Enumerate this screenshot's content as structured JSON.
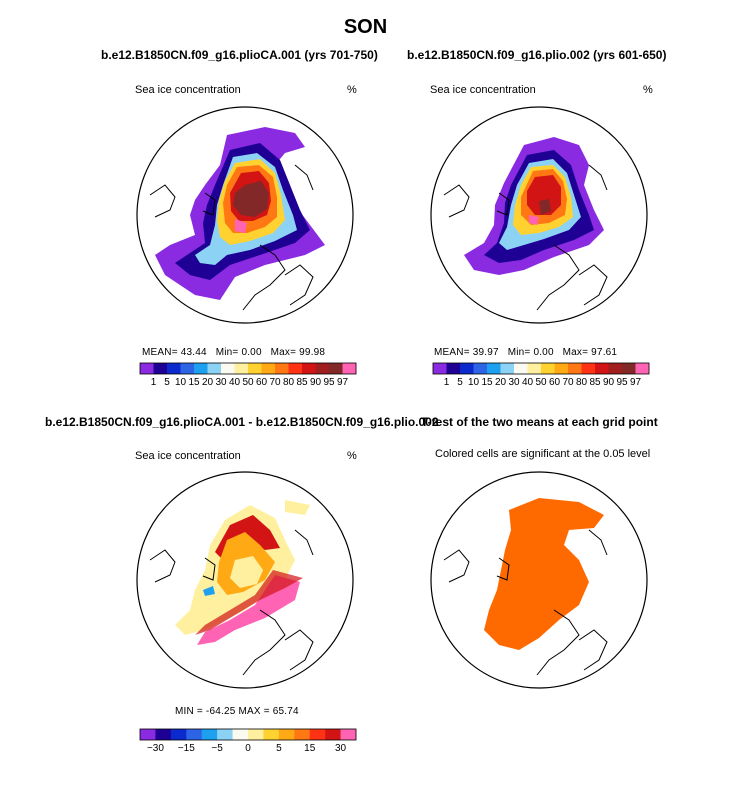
{
  "figure": {
    "title": "SON"
  },
  "panels": {
    "top_left": {
      "title": "b.e12.B1850CN.f09_g16.plioCA.001 (yrs 701-750)",
      "left_label": "Sea ice concentration",
      "right_label": "%",
      "stats": {
        "mean_label": "MEAN=",
        "mean": "43.44",
        "min_label": "Min=",
        "min": "0.00",
        "max_label": "Max=",
        "max": "99.98"
      }
    },
    "top_right": {
      "title": "b.e12.B1850CN.f09_g16.plio.002 (yrs 601-650)",
      "left_label": "Sea ice concentration",
      "right_label": "%",
      "stats": {
        "mean_label": "MEAN=",
        "mean": "39.97",
        "min_label": "Min=",
        "min": "0.00",
        "max_label": "Max=",
        "max": "97.61"
      }
    },
    "bottom_left": {
      "title": "b.e12.B1850CN.f09_g16.plioCA.001 - b.e12.B1850CN.f09_g16.plio.002",
      "left_label": "Sea ice concentration",
      "right_label": "%",
      "stats_text": "MIN = -64.25  MAX =  65.74"
    },
    "bottom_right": {
      "title": "T-test of the two means at each grid point",
      "subtitle": "Colored cells are significant at the 0.05 level"
    }
  },
  "colorbars": {
    "concentration": {
      "colors": [
        "#8a2be2",
        "#1e0094",
        "#0a2acd",
        "#2d64e6",
        "#1ea0f0",
        "#8cd2f5",
        "#fafaf0",
        "#fff0a0",
        "#ffd232",
        "#ffaa14",
        "#ff7814",
        "#ff3214",
        "#d21414",
        "#a01e1e",
        "#822828",
        "#ff64b4"
      ],
      "tick_labels": [
        "1",
        "5",
        "10",
        "15",
        "20",
        "30",
        "40",
        "50",
        "60",
        "70",
        "80",
        "85",
        "90",
        "95",
        "97"
      ]
    },
    "difference": {
      "colors": [
        "#8a2be2",
        "#1e0094",
        "#0a2acd",
        "#2d64e6",
        "#1ea0f0",
        "#8cd2f5",
        "#fafaf0",
        "#fff0a0",
        "#ffd232",
        "#ffaa14",
        "#ff7814",
        "#ff3214",
        "#d21414",
        "#ff64b4"
      ],
      "tick_labels": [
        "-30",
        "-15",
        "-5",
        "0",
        "5",
        "15",
        "30"
      ]
    }
  },
  "map_colors": {
    "land_outline": "#000000",
    "significant": "#ff6a00"
  }
}
